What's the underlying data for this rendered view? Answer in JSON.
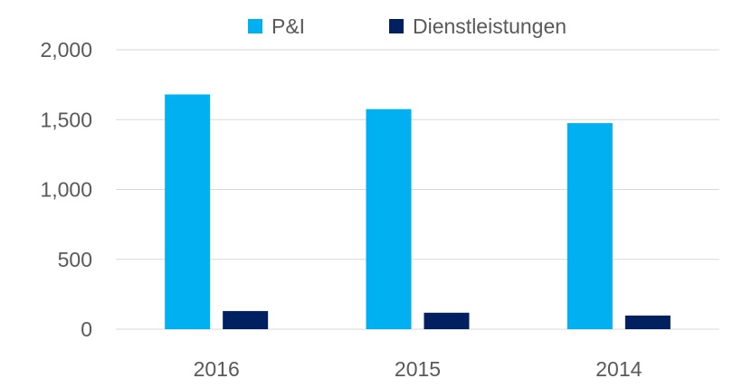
{
  "chart_data": {
    "type": "bar",
    "title": "",
    "xlabel": "",
    "ylabel": "",
    "categories": [
      "2016",
      "2015",
      "2014"
    ],
    "series": [
      {
        "name": "P&I",
        "values": [
          1680,
          1575,
          1475
        ],
        "color": "#00B0F0"
      },
      {
        "name": "Dienstleistungen",
        "values": [
          130,
          118,
          98
        ],
        "color": "#002060"
      }
    ],
    "ylim": [
      0,
      2000
    ],
    "yticks": [
      0,
      500,
      1000,
      1500,
      2000
    ],
    "ytick_labels": [
      "0",
      "500",
      "1,000",
      "1,500",
      "2,000"
    ],
    "grid": true,
    "gridline_color": "#d9d9d9",
    "legend_position": "top"
  }
}
